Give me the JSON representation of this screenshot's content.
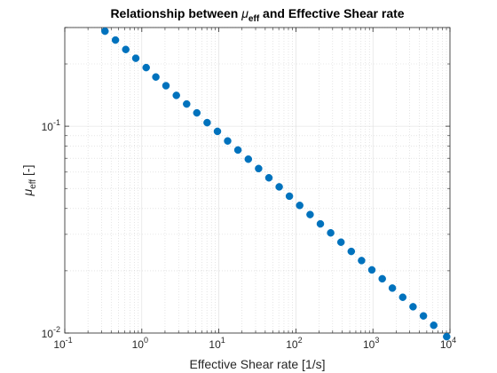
{
  "chart_data": {
    "type": "scatter",
    "title": {
      "prefix": "Relationship between ",
      "symbol": "μ",
      "subscript": "eff",
      "suffix": " and Effective Shear rate"
    },
    "xlabel": "Effective Shear rate [1/s]",
    "ylabel": {
      "symbol": "μ",
      "subscript": "eff",
      "suffix": " [-]"
    },
    "xscale": "log",
    "yscale": "log",
    "xlim": [
      0.1,
      10000
    ],
    "ylim": [
      0.01,
      0.3
    ],
    "grid": true,
    "minor_grid": true,
    "box": true,
    "marker_color": "#0072BD",
    "x_ticks": [
      {
        "base": "10",
        "exp": "-1"
      },
      {
        "base": "10",
        "exp": "0"
      },
      {
        "base": "10",
        "exp": "1"
      },
      {
        "base": "10",
        "exp": "2"
      },
      {
        "base": "10",
        "exp": "3"
      },
      {
        "base": "10",
        "exp": "4"
      }
    ],
    "y_ticks": [
      {
        "base": "10",
        "exp": "-2"
      },
      {
        "base": "10",
        "exp": "-1"
      }
    ],
    "series": [
      {
        "x": [
          0.333,
          0.455,
          0.618,
          0.835,
          1.14,
          1.52,
          2.06,
          2.81,
          3.82,
          5.18,
          7.04,
          9.58,
          13.0,
          17.7,
          24.1,
          32.8,
          44.6,
          60.7,
          82.5,
          112,
          153,
          208,
          283,
          385,
          523,
          712,
          969,
          1320,
          1790,
          2440,
          3320,
          4520,
          6150,
          9060
        ],
        "y": [
          0.288,
          0.261,
          0.235,
          0.213,
          0.192,
          0.173,
          0.157,
          0.141,
          0.128,
          0.116,
          0.104,
          0.0944,
          0.0849,
          0.0767,
          0.0693,
          0.0624,
          0.0563,
          0.0509,
          0.0459,
          0.0414,
          0.0374,
          0.0337,
          0.0305,
          0.0275,
          0.0248,
          0.0224,
          0.0202,
          0.0183,
          0.0165,
          0.0149,
          0.0134,
          0.0121,
          0.0109,
          0.0096
        ]
      }
    ]
  }
}
